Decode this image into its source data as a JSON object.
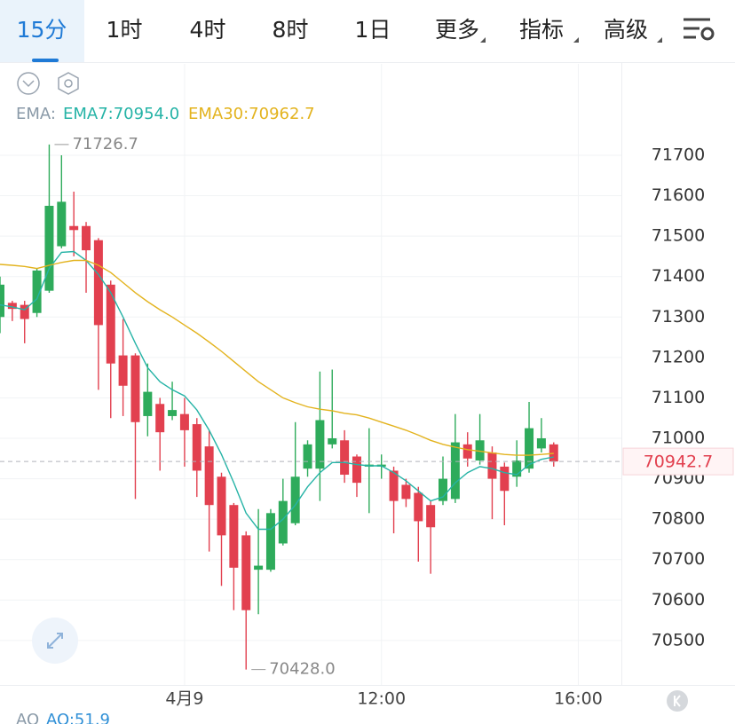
{
  "tabs": [
    "15分",
    "1时",
    "4时",
    "8时",
    "1日",
    "更多",
    "指标",
    "高级"
  ],
  "chart_data": {
    "type": "candlestick",
    "indicator_label": "EMA:",
    "x": [
      0,
      1,
      2,
      3,
      4,
      5,
      6,
      7,
      8,
      9,
      10,
      11,
      12,
      13,
      14,
      15,
      16,
      17,
      18,
      19,
      20,
      21,
      22,
      23,
      24,
      25,
      26,
      27,
      28,
      29,
      30,
      31,
      32,
      33,
      34,
      35,
      36,
      37,
      38,
      39,
      40,
      41,
      42,
      43,
      44,
      45
    ],
    "xlim": [
      0,
      50.5
    ],
    "xticks": [
      {
        "value": 15,
        "label": "4月9"
      },
      {
        "value": 31,
        "label": "12:00"
      },
      {
        "value": 47,
        "label": "16:00"
      }
    ],
    "ylim": [
      70390,
      71926
    ],
    "yticks": [
      70500,
      70600,
      70700,
      70800,
      70900,
      71000,
      71100,
      71200,
      71300,
      71400,
      71500,
      71600,
      71700
    ],
    "grid": true,
    "up_color": "#2eab5b",
    "down_color": "#e2404f",
    "ohlc": {
      "open": [
        71300,
        71335,
        71330,
        71310,
        71365,
        71475,
        71525,
        71525,
        71490,
        71380,
        71205,
        71205,
        71055,
        71085,
        71055,
        71060,
        71035,
        70980,
        70905,
        70835,
        70760,
        70675,
        70675,
        70740,
        70790,
        70925,
        70925,
        70985,
        70995,
        70955,
        70930,
        70930,
        70920,
        70885,
        70865,
        70835,
        70845,
        70850,
        70985,
        70945,
        70965,
        70930,
        70905,
        70925,
        70975,
        70985
      ],
      "high": [
        71400,
        71340,
        71340,
        71420,
        71726.7,
        71700,
        71610,
        71535,
        71495,
        71390,
        71295,
        71210,
        71185,
        71100,
        71140,
        71100,
        71050,
        71020,
        70915,
        70840,
        70770,
        70825,
        70825,
        70900,
        71040,
        70995,
        71165,
        71170,
        71020,
        70960,
        71025,
        70960,
        70930,
        70900,
        70880,
        70845,
        70955,
        71060,
        71015,
        71060,
        70980,
        70940,
        70995,
        71090,
        71050,
        70990
      ],
      "low": [
        71260,
        71290,
        71235,
        71300,
        71360,
        71470,
        71450,
        71360,
        71120,
        71050,
        71055,
        70850,
        71005,
        70920,
        71045,
        70930,
        70855,
        70720,
        70635,
        70575,
        70428,
        70565,
        70670,
        70735,
        70785,
        70905,
        70845,
        70975,
        70890,
        70855,
        70815,
        70900,
        70765,
        70830,
        70695,
        70665,
        70835,
        70840,
        70930,
        70935,
        70800,
        70785,
        70880,
        70915,
        70965,
        70930
      ],
      "close": [
        71380,
        71320,
        71295,
        71415,
        71575,
        71585,
        71515,
        71465,
        71280,
        71185,
        71130,
        71040,
        71115,
        71015,
        71070,
        71020,
        70920,
        70835,
        70760,
        70680,
        70575,
        70685,
        70815,
        70845,
        70905,
        70985,
        71045,
        71000,
        70910,
        70890,
        70935,
        70935,
        70845,
        70850,
        70795,
        70780,
        70900,
        70990,
        70950,
        70995,
        70900,
        70870,
        70945,
        71025,
        71000,
        70942.7
      ]
    },
    "series": [
      {
        "name": "EMA7:70954.0",
        "color": "#25b3a6",
        "values": [
          71330,
          71325,
          71318,
          71345,
          71420,
          71460,
          71462,
          71440,
          71405,
          71360,
          71300,
          71235,
          71175,
          71140,
          71120,
          71105,
          71070,
          71020,
          70960,
          70890,
          70815,
          70775,
          70775,
          70800,
          70835,
          70880,
          70915,
          70940,
          70940,
          70935,
          70932,
          70932,
          70915,
          70895,
          70870,
          70845,
          70855,
          70890,
          70915,
          70930,
          70925,
          70915,
          70910,
          70935,
          70948,
          70954.0
        ]
      },
      {
        "name": "EMA30:70962.7",
        "color": "#e3b31e",
        "values": [
          71430,
          71428,
          71425,
          71420,
          71428,
          71435,
          71440,
          71440,
          71428,
          71410,
          71385,
          71360,
          71338,
          71318,
          71300,
          71280,
          71260,
          71238,
          71215,
          71190,
          71165,
          71140,
          71120,
          71100,
          71088,
          71078,
          71072,
          71068,
          71062,
          71058,
          71050,
          71040,
          71030,
          71020,
          71008,
          70995,
          70985,
          70978,
          70972,
          70968,
          70964,
          70960,
          70958,
          70958,
          70960,
          70962.7
        ]
      }
    ],
    "high_marker": {
      "value": 71726.7,
      "label": "71726.7"
    },
    "low_marker": {
      "value": 70428.0,
      "label": "70428.0"
    },
    "last_price": {
      "value": 70942.7,
      "label": "70942.7"
    }
  },
  "bottom_indicator": {
    "name": "AO",
    "value_label": "AO:51.9"
  }
}
